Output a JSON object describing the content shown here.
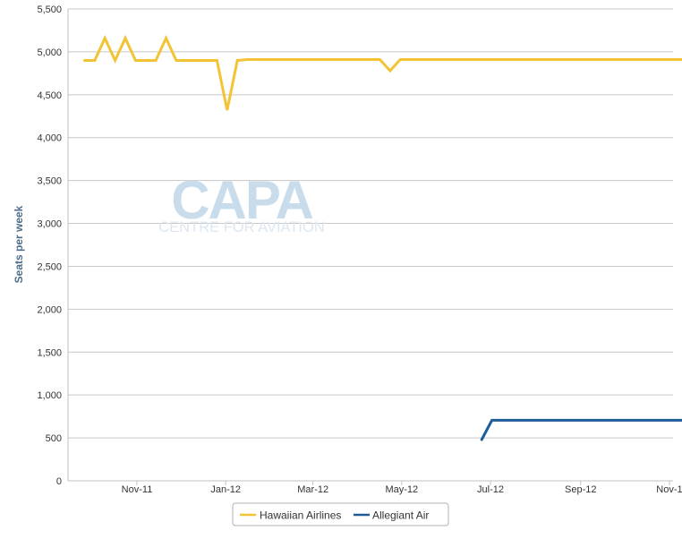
{
  "chart_data": {
    "type": "line",
    "ylabel": "Seats per week",
    "ylim": [
      0,
      5500
    ],
    "y_ticks": [
      0,
      500,
      1000,
      1500,
      2000,
      2500,
      3000,
      3500,
      4000,
      4500,
      5000,
      5500
    ],
    "y_tick_labels": [
      "0",
      "500",
      "1,000",
      "1,500",
      "2,000",
      "2,500",
      "3,000",
      "3,500",
      "4,000",
      "4,500",
      "5,000",
      "5,500"
    ],
    "x_tick_labels": [
      "Nov-11",
      "Jan-12",
      "Mar-12",
      "May-12",
      "Jul-12",
      "Sep-12",
      "Nov-1"
    ],
    "grid": true,
    "legend_position": "bottom-center",
    "series": [
      {
        "name": "Hawaiian Airlines",
        "color": "#f2c335",
        "points": [
          {
            "x": "2011-09-26",
            "y": 4900
          },
          {
            "x": "2011-10-03",
            "y": 4900
          },
          {
            "x": "2011-10-10",
            "y": 5160
          },
          {
            "x": "2011-10-17",
            "y": 4900
          },
          {
            "x": "2011-10-24",
            "y": 5160
          },
          {
            "x": "2011-10-31",
            "y": 4900
          },
          {
            "x": "2011-11-07",
            "y": 4900
          },
          {
            "x": "2011-11-14",
            "y": 4900
          },
          {
            "x": "2011-11-21",
            "y": 5160
          },
          {
            "x": "2011-11-28",
            "y": 4900
          },
          {
            "x": "2011-12-05",
            "y": 4900
          },
          {
            "x": "2011-12-12",
            "y": 4900
          },
          {
            "x": "2011-12-19",
            "y": 4900
          },
          {
            "x": "2011-12-26",
            "y": 4900
          },
          {
            "x": "2012-01-02",
            "y": 4320
          },
          {
            "x": "2012-01-09",
            "y": 4900
          },
          {
            "x": "2012-01-16",
            "y": 4910
          },
          {
            "x": "2012-04-16",
            "y": 4910
          },
          {
            "x": "2012-04-23",
            "y": 4780
          },
          {
            "x": "2012-04-30",
            "y": 4910
          },
          {
            "x": "2012-11-19",
            "y": 4910
          }
        ]
      },
      {
        "name": "Allegiant Air",
        "color": "#1f5c99",
        "points": [
          {
            "x": "2012-06-25",
            "y": 480
          },
          {
            "x": "2012-07-02",
            "y": 705
          },
          {
            "x": "2012-11-19",
            "y": 705
          }
        ]
      }
    ]
  },
  "watermark": {
    "logo_text": "CAPA",
    "tagline": "CENTRE FOR AVIATION"
  }
}
